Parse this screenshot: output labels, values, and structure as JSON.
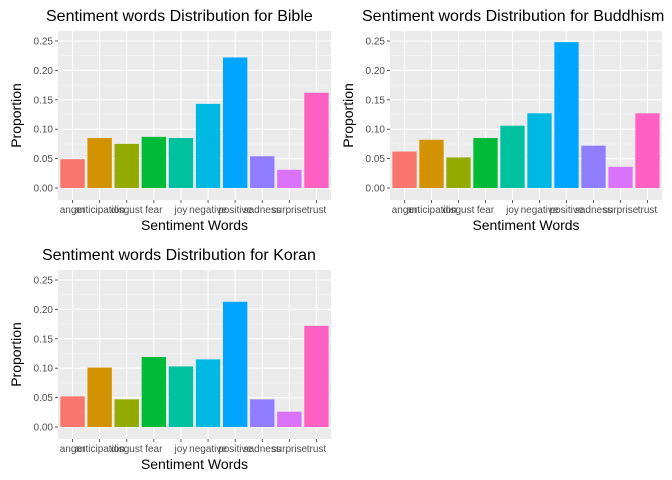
{
  "chart_data": [
    {
      "type": "bar",
      "title": "Sentiment words Distribution for Bible",
      "xlabel": "Sentiment Words",
      "ylabel": "Proportion",
      "ylim": [
        0,
        0.25
      ],
      "yticks": [
        "0.00",
        "0.05",
        "0.10",
        "0.15",
        "0.20",
        "0.25"
      ],
      "grid": true,
      "categories": [
        "anger",
        "anticipation",
        "disgust",
        "fear",
        "joy",
        "negative",
        "positive",
        "sadness",
        "surprise",
        "trust"
      ],
      "values": [
        0.049,
        0.085,
        0.075,
        0.087,
        0.085,
        0.143,
        0.222,
        0.054,
        0.031,
        0.162
      ]
    },
    {
      "type": "bar",
      "title": "Sentiment words Distribution for Buddhism",
      "xlabel": "Sentiment Words",
      "ylabel": "Proportion",
      "ylim": [
        0,
        0.25
      ],
      "yticks": [
        "0.00",
        "0.05",
        "0.10",
        "0.15",
        "0.20",
        "0.25"
      ],
      "grid": true,
      "categories": [
        "anger",
        "anticipation",
        "disgust",
        "fear",
        "joy",
        "negative",
        "positive",
        "sadness",
        "surprise",
        "trust"
      ],
      "values": [
        0.062,
        0.082,
        0.052,
        0.085,
        0.106,
        0.127,
        0.248,
        0.072,
        0.036,
        0.127
      ]
    },
    {
      "type": "bar",
      "title": "Sentiment words Distribution for Koran",
      "xlabel": "Sentiment Words",
      "ylabel": "Proportion",
      "ylim": [
        0,
        0.25
      ],
      "yticks": [
        "0.00",
        "0.05",
        "0.10",
        "0.15",
        "0.20",
        "0.25"
      ],
      "grid": true,
      "categories": [
        "anger",
        "anticipation",
        "disgust",
        "fear",
        "joy",
        "negative",
        "positive",
        "sadness",
        "surprise",
        "trust"
      ],
      "values": [
        0.052,
        0.101,
        0.047,
        0.119,
        0.103,
        0.115,
        0.213,
        0.047,
        0.026,
        0.172
      ]
    }
  ],
  "colors": [
    "#F8766D",
    "#D39200",
    "#93AA00",
    "#00BA38",
    "#00C19F",
    "#00B9E3",
    "#00A5FF",
    "#8F7CFF",
    "#DB72FB",
    "#FF61C3"
  ]
}
